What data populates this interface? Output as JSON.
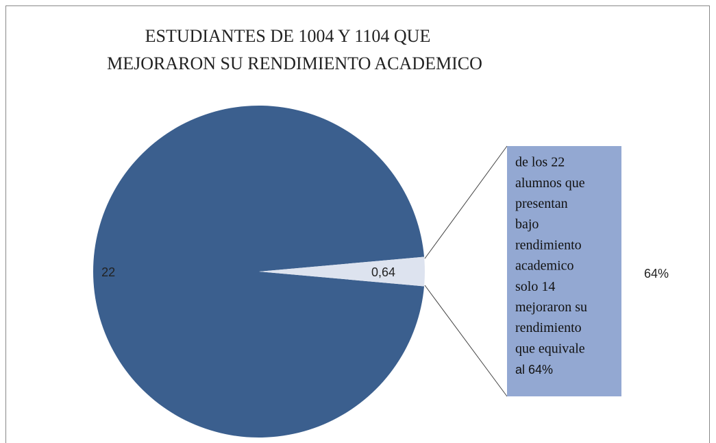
{
  "chart_data": {
    "type": "pie",
    "title_lines": [
      "ESTUDIANTES DE 1004 Y 1104 QUE",
      "MEJORARON SU RENDIMIENTO  ACADEMICO"
    ],
    "categories": [
      null,
      null
    ],
    "values": [
      22,
      0.64
    ],
    "value_labels": [
      "22",
      "0,64"
    ],
    "colors": [
      "#3b5f8e",
      "#dde3ef"
    ],
    "annotation_lines": [
      "de los 22",
      "alumnos que",
      "presentan",
      "bajo",
      "rendimiento",
      "academico",
      "solo 14",
      "mejoraron su",
      "rendimiento",
      "que equivale",
      "al 64%"
    ],
    "annotation_note": "64%"
  }
}
